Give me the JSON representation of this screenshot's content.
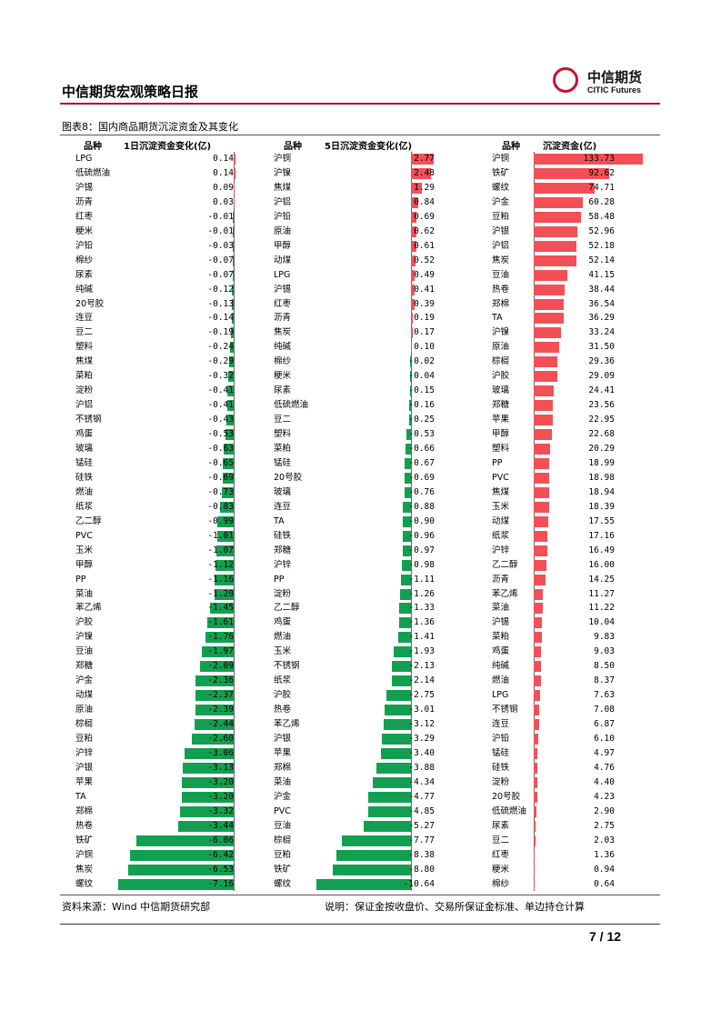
{
  "header": {
    "title": "中信期货宏观策略日报",
    "logo_cn": "中信期货",
    "logo_en": "CITIC Futures",
    "accent_color": "#c8102e"
  },
  "figure": {
    "title": "图表8：国内商品期货沉淀资金及其变化",
    "source": "资料来源：Wind 中信期货研究部",
    "note": "说明：保证金按收盘价、交易所保证金标准、单边持仓计算"
  },
  "page_number": "7 / 12",
  "chart_data": [
    {
      "type": "bar",
      "orientation": "horizontal",
      "category_header": "品种",
      "title": "1日沉淀资金变化(亿)",
      "colors": {
        "negative": "#12a050",
        "positive": "#f24f57"
      },
      "categories": [
        "LPG",
        "低硫燃油",
        "沪锡",
        "沥青",
        "红枣",
        "粳米",
        "沪铅",
        "棉纱",
        "尿素",
        "纯碱",
        "20号胶",
        "连豆",
        "豆二",
        "塑料",
        "焦煤",
        "菜粕",
        "淀粉",
        "沪铝",
        "不锈钢",
        "鸡蛋",
        "玻璃",
        "锰硅",
        "硅铁",
        "燃油",
        "纸浆",
        "乙二醇",
        "PVC",
        "玉米",
        "甲醇",
        "PP",
        "菜油",
        "苯乙烯",
        "沪胶",
        "沪镍",
        "豆油",
        "郑糖",
        "沪金",
        "动煤",
        "原油",
        "棕榈",
        "豆粕",
        "沪锌",
        "沪银",
        "苹果",
        "TA",
        "郑棉",
        "热卷",
        "铁矿",
        "沪铜",
        "焦炭",
        "螺纹"
      ],
      "labels": [
        "0.14",
        "0.14",
        "0.09",
        "0.03",
        "-0.01",
        "-0.01",
        "-0.03",
        "-0.07",
        "-0.07",
        "-0.12",
        "-0.13",
        "-0.14",
        "-0.19",
        "-0.24",
        "-0.29",
        "-0.32",
        "-0.41",
        "-0.41",
        "-0.43",
        "-0.53",
        "-0.63",
        "-0.65",
        "-0.69",
        "-0.73",
        "-0.83",
        "-0.99",
        "-1.01",
        "-1.07",
        "-1.12",
        "-1.16",
        "-1.20",
        "-1.45",
        "-1.61",
        "-1.76",
        "-1.97",
        "-2.09",
        "-2.36",
        "-2.37",
        "-2.39",
        "-2.44",
        "-2.60",
        "-3.06",
        "-3.13",
        "-3.20",
        "-3.20",
        "-3.32",
        "-3.44",
        "-6.06",
        "-6.42",
        "-6.53",
        "-7.16"
      ],
      "values": [
        0.14,
        0.14,
        0.09,
        0.03,
        -0.01,
        -0.01,
        -0.03,
        -0.07,
        -0.07,
        -0.12,
        -0.13,
        -0.14,
        -0.19,
        -0.24,
        -0.29,
        -0.32,
        -0.41,
        -0.41,
        -0.43,
        -0.53,
        -0.63,
        -0.65,
        -0.69,
        -0.73,
        -0.83,
        -0.99,
        -1.01,
        -1.07,
        -1.12,
        -1.16,
        -1.2,
        -1.45,
        -1.61,
        -1.76,
        -1.97,
        -2.09,
        -2.36,
        -2.37,
        -2.39,
        -2.44,
        -2.6,
        -3.06,
        -3.13,
        -3.2,
        -3.2,
        -3.32,
        -3.44,
        -6.06,
        -6.42,
        -6.53,
        -7.16
      ]
    },
    {
      "type": "bar",
      "orientation": "horizontal",
      "category_header": "品种",
      "title": "5日沉淀资金变化(亿)",
      "colors": {
        "negative": "#12a050",
        "positive": "#f24f57"
      },
      "categories": [
        "沪铜",
        "沪镍",
        "焦煤",
        "沪铝",
        "沪铅",
        "原油",
        "甲醇",
        "动煤",
        "LPG",
        "沪锡",
        "红枣",
        "沥青",
        "焦炭",
        "纯碱",
        "棉纱",
        "粳米",
        "尿素",
        "低硫燃油",
        "豆二",
        "塑料",
        "菜粕",
        "锰硅",
        "20号胶",
        "玻璃",
        "连豆",
        "TA",
        "硅铁",
        "郑糖",
        "沪锌",
        "PP",
        "淀粉",
        "乙二醇",
        "鸡蛋",
        "燃油",
        "玉米",
        "不锈钢",
        "纸浆",
        "沪胶",
        "热卷",
        "苯乙烯",
        "沪银",
        "苹果",
        "郑棉",
        "菜油",
        "沪金",
        "PVC",
        "豆油",
        "棕榈",
        "豆粕",
        "铁矿",
        "螺纹"
      ],
      "labels": [
        "2.77",
        "2.48",
        "1.29",
        "0.84",
        "0.69",
        "0.62",
        "0.61",
        "0.52",
        "0.49",
        "0.41",
        "0.39",
        "0.19",
        "0.17",
        "0.10",
        "-0.02",
        "-0.04",
        "-0.15",
        "-0.16",
        "-0.25",
        "-0.53",
        "-0.66",
        "-0.67",
        "-0.69",
        "-0.76",
        "-0.88",
        "-0.90",
        "-0.96",
        "-0.97",
        "-0.98",
        "-1.11",
        "-1.26",
        "-1.33",
        "-1.36",
        "-1.41",
        "-1.93",
        "-2.13",
        "-2.14",
        "-2.75",
        "-3.01",
        "-3.12",
        "-3.29",
        "-3.40",
        "-3.88",
        "-4.34",
        "-4.77",
        "-4.85",
        "-5.27",
        "-7.77",
        "-8.38",
        "-8.80",
        "-10.64"
      ],
      "values": [
        2.77,
        2.48,
        1.29,
        0.84,
        0.69,
        0.62,
        0.61,
        0.52,
        0.49,
        0.41,
        0.39,
        0.19,
        0.17,
        0.1,
        -0.02,
        -0.04,
        -0.15,
        -0.16,
        -0.25,
        -0.53,
        -0.66,
        -0.67,
        -0.69,
        -0.76,
        -0.88,
        -0.9,
        -0.96,
        -0.97,
        -0.98,
        -1.11,
        -1.26,
        -1.33,
        -1.36,
        -1.41,
        -1.93,
        -2.13,
        -2.14,
        -2.75,
        -3.01,
        -3.12,
        -3.29,
        -3.4,
        -3.88,
        -4.34,
        -4.77,
        -4.85,
        -5.27,
        -7.77,
        -8.38,
        -8.8,
        -10.64
      ]
    },
    {
      "type": "bar",
      "orientation": "horizontal",
      "category_header": "品种",
      "title": "沉淀资金(亿)",
      "colors": {
        "negative": "#12a050",
        "positive": "#f24f57"
      },
      "categories": [
        "沪铜",
        "铁矿",
        "螺纹",
        "沪金",
        "豆粕",
        "沪银",
        "沪铝",
        "焦炭",
        "豆油",
        "热卷",
        "郑棉",
        "TA",
        "沪镍",
        "原油",
        "棕榈",
        "沪胶",
        "玻璃",
        "郑糖",
        "苹果",
        "甲醇",
        "塑料",
        "PP",
        "PVC",
        "焦煤",
        "玉米",
        "动煤",
        "纸浆",
        "沪锌",
        "乙二醇",
        "沥青",
        "苯乙烯",
        "菜油",
        "沪锡",
        "菜粕",
        "鸡蛋",
        "纯碱",
        "燃油",
        "LPG",
        "不锈钢",
        "连豆",
        "沪铅",
        "锰硅",
        "硅铁",
        "淀粉",
        "20号胶",
        "低硫燃油",
        "尿素",
        "豆二",
        "红枣",
        "粳米",
        "棉纱"
      ],
      "labels": [
        "133.73",
        "92.62",
        "74.71",
        "60.28",
        "58.48",
        "52.96",
        "52.18",
        "52.14",
        "41.15",
        "38.44",
        "36.54",
        "36.29",
        "33.24",
        "31.50",
        "29.36",
        "29.09",
        "24.41",
        "23.56",
        "22.95",
        "22.68",
        "20.29",
        "18.99",
        "18.98",
        "18.94",
        "18.39",
        "17.55",
        "17.16",
        "16.49",
        "16.00",
        "14.25",
        "11.27",
        "11.22",
        "10.04",
        "9.83",
        "9.03",
        "8.50",
        "8.37",
        "7.63",
        "7.08",
        "6.87",
        "6.10",
        "4.97",
        "4.76",
        "4.40",
        "4.23",
        "2.90",
        "2.75",
        "2.03",
        "1.36",
        "0.94",
        "0.64"
      ],
      "values": [
        133.73,
        92.62,
        74.71,
        60.28,
        58.48,
        52.96,
        52.18,
        52.14,
        41.15,
        38.44,
        36.54,
        36.29,
        33.24,
        31.5,
        29.36,
        29.09,
        24.41,
        23.56,
        22.95,
        22.68,
        20.29,
        18.99,
        18.98,
        18.94,
        18.39,
        17.55,
        17.16,
        16.49,
        16.0,
        14.25,
        11.27,
        11.22,
        10.04,
        9.83,
        9.03,
        8.5,
        8.37,
        7.63,
        7.08,
        6.87,
        6.1,
        4.97,
        4.76,
        4.4,
        4.23,
        2.9,
        2.75,
        2.03,
        1.36,
        0.94,
        0.64
      ]
    }
  ]
}
